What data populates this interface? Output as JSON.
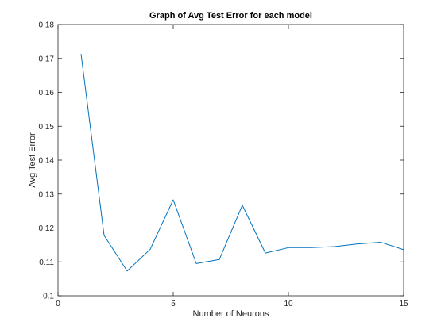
{
  "chart_data": {
    "type": "line",
    "title": "Graph of Avg Test Error for each model",
    "xlabel": "Number of Neurons",
    "ylabel": "Avg Test Error",
    "xlim": [
      0,
      15
    ],
    "ylim": [
      0.1,
      0.18
    ],
    "xticks": [
      0,
      5,
      10,
      15
    ],
    "xtick_labels": [
      "0",
      "5",
      "10",
      "15"
    ],
    "yticks": [
      0.1,
      0.11,
      0.12,
      0.13,
      0.14,
      0.15,
      0.16,
      0.17,
      0.18
    ],
    "ytick_labels": [
      "0.1",
      "0.11",
      "0.12",
      "0.13",
      "0.14",
      "0.15",
      "0.16",
      "0.17",
      "0.18"
    ],
    "grid": false,
    "series": [
      {
        "color": "#0072bd",
        "x": [
          1,
          2,
          3,
          4,
          5,
          6,
          7,
          8,
          9,
          10,
          11,
          12,
          13,
          14,
          15
        ],
        "y": [
          0.1713,
          0.1178,
          0.1073,
          0.1137,
          0.1283,
          0.1095,
          0.1107,
          0.1267,
          0.1126,
          0.1142,
          0.1142,
          0.1145,
          0.1153,
          0.1158,
          0.1136
        ]
      }
    ]
  }
}
